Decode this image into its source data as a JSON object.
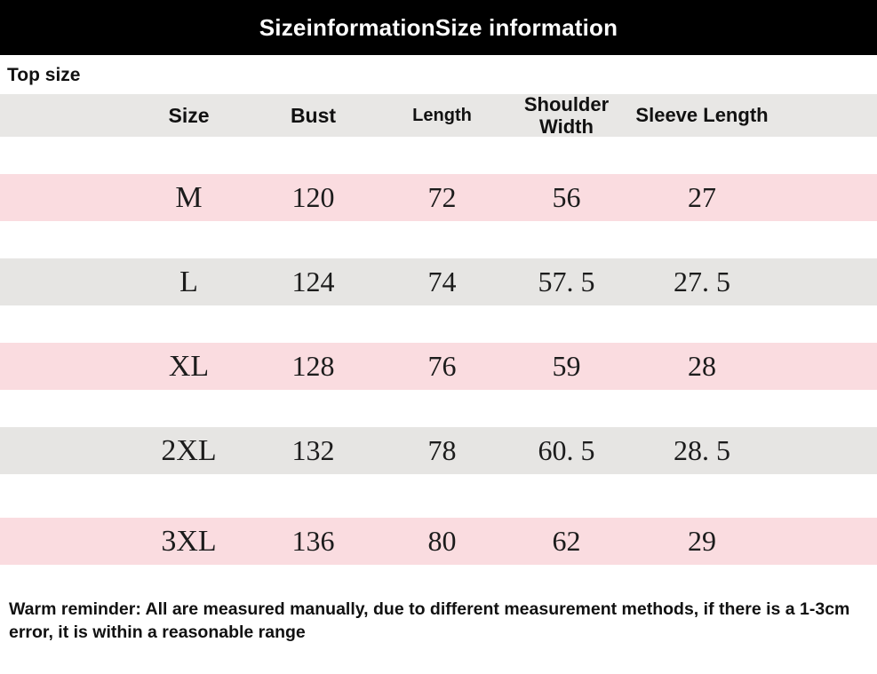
{
  "banner": {
    "title": "SizeinformationSize information"
  },
  "section_label": "Top size",
  "table": {
    "columns": [
      "Size",
      "Bust",
      "Length",
      "Shoulder Width",
      "Sleeve Length"
    ],
    "rows": [
      {
        "size": "M",
        "bust": "120",
        "length": "72",
        "shoulder_width": "56",
        "sleeve_length": "27"
      },
      {
        "size": "L",
        "bust": "124",
        "length": "74",
        "shoulder_width": "57. 5",
        "sleeve_length": "27. 5"
      },
      {
        "size": "XL",
        "bust": "128",
        "length": "76",
        "shoulder_width": "59",
        "sleeve_length": "28"
      },
      {
        "size": "2XL",
        "bust": "132",
        "length": "78",
        "shoulder_width": "60. 5",
        "sleeve_length": "28. 5"
      },
      {
        "size": "3XL",
        "bust": "136",
        "length": "80",
        "shoulder_width": "62",
        "sleeve_length": "29"
      }
    ]
  },
  "footer": {
    "note": "Warm reminder: All are measured manually, due to different measurement methods, if there is a 1-3cm error, it is within a reasonable range"
  },
  "colors": {
    "banner_bg": "#000000",
    "banner_text": "#ffffff",
    "header_row_bg": "#e8e7e5",
    "pink_row_bg": "#fadce0",
    "gray_row_bg": "#e6e5e3",
    "size_blue": "#5b74c4",
    "size_rose": "#d5626f",
    "text": "#1c1c1c"
  }
}
